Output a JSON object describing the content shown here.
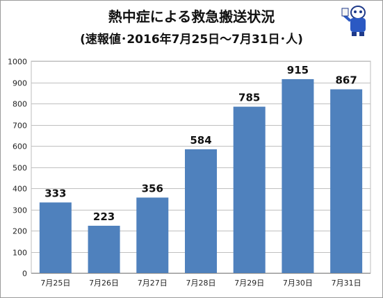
{
  "chart_data": {
    "type": "bar",
    "title": "熱中症による救急搬送状況",
    "subtitle": "(速報値･2016年7月25日〜7月31日･人)",
    "categories": [
      "7月25日",
      "7月26日",
      "7月27日",
      "7月28日",
      "7月29日",
      "7月30日",
      "7月31日"
    ],
    "values": [
      333,
      223,
      356,
      584,
      785,
      915,
      867
    ],
    "ylim": [
      0,
      1000
    ],
    "yticks": [
      0,
      100,
      200,
      300,
      400,
      500,
      600,
      700,
      800,
      900,
      1000
    ],
    "xlabel": "",
    "ylabel": "",
    "grid": true,
    "legend": "none",
    "bar_color": "#4f81bd"
  }
}
